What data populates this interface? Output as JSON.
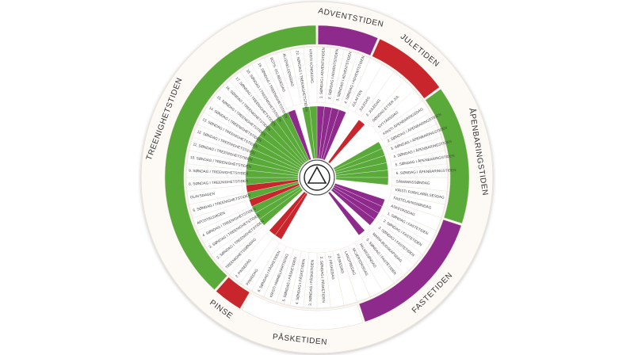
{
  "wheel": {
    "seasons": [
      {
        "name": "ADVENTSTIDEN",
        "color": "#8e2a8c",
        "days": [
          {
            "label": "1. SØNDAG I ADVENTSTIDEN",
            "color": "#8e2a8c"
          },
          {
            "label": "2. SØNDAG I ADVENTSTIDEN",
            "color": "#8e2a8c"
          },
          {
            "label": "3. SØNDAG I ADVENTSTIDEN",
            "color": "#8e2a8c"
          },
          {
            "label": "4. SØNDAG I ADVENTSTIDEN",
            "color": "#8e2a8c"
          }
        ]
      },
      {
        "name": "JULETIDEN",
        "color": "#c8262c",
        "days": [
          {
            "label": "JULAFTEN",
            "color": "#ffffff"
          },
          {
            "label": "JULEDAG",
            "color": "#ffffff"
          },
          {
            "label": "2. JULEDAG",
            "color": "#c8262c"
          },
          {
            "label": "SØNDAG ETTER JUL",
            "color": "#ffffff"
          },
          {
            "label": "NYTTÅRSDAG",
            "color": "#ffffff"
          }
        ]
      },
      {
        "name": "ÅPENBARINGSTIDEN",
        "color": "#5aaa3a",
        "days": [
          {
            "label": "KRISTI ÅPENBARINGSDAG",
            "color": "#ffffff"
          },
          {
            "label": "2. SØNDAG I ÅPENBARINGSTIDEN",
            "color": "#5aaa3a"
          },
          {
            "label": "3. SØNDAG I ÅPENBARINGSTIDEN",
            "color": "#5aaa3a"
          },
          {
            "label": "4. SØNDAG I ÅPENBARINGSTIDEN",
            "color": "#5aaa3a"
          },
          {
            "label": "5. SØNDAG I ÅPENBARINGSTIDEN",
            "color": "#5aaa3a"
          },
          {
            "label": "6. SØNDAG I ÅPENBARINGSTIDEN",
            "color": "#5aaa3a"
          },
          {
            "label": "SÅMANNSSØNDAG",
            "color": "#5aaa3a"
          },
          {
            "label": "KRISTI FORKLARELSESDAG",
            "color": "#ffffff"
          },
          {
            "label": "FASTELAVNSSØNDAG",
            "color": "#ffffff"
          }
        ]
      },
      {
        "name": "FASTETIDEN",
        "color": "#8e2a8c",
        "days": [
          {
            "label": "ASKEONSDAG",
            "color": "#8e2a8c"
          },
          {
            "label": "1. SØNDAG I FASTETIDEN",
            "color": "#8e2a8c"
          },
          {
            "label": "2. SØNDAG I FASTETIDEN",
            "color": "#8e2a8c"
          },
          {
            "label": "3. SØNDAG I FASTETIDEN",
            "color": "#8e2a8c"
          },
          {
            "label": "MARIA BUDSKAPSDAG",
            "color": "#ffffff"
          },
          {
            "label": "5. SØNDAG I FASTETIDEN",
            "color": "#8e2a8c"
          },
          {
            "label": "PALMESØNDAG",
            "color": "#ffffff"
          },
          {
            "label": "SKJÆRTORSDAG",
            "color": "#ffffff"
          },
          {
            "label": "LANGFREDAG",
            "color": "#ffffff"
          }
        ]
      },
      {
        "name": "PÅSKETIDEN",
        "color": "#ffffff",
        "days": [
          {
            "label": "PÅSKEDAG",
            "color": "#ffffff"
          },
          {
            "label": "2. PÅSKEDAG",
            "color": "#ffffff"
          },
          {
            "label": "2. SØNDAG I PÅSKETIDEN",
            "color": "#ffffff"
          },
          {
            "label": "3. SØNDAG I PÅSKETIDEN",
            "color": "#ffffff"
          },
          {
            "label": "4. SØNDAG I PÅSKETIDEN",
            "color": "#ffffff"
          },
          {
            "label": "5. SØNDAG I PÅSKETIDEN",
            "color": "#ffffff"
          },
          {
            "label": "KRISTI HIMMELFARTSDAG",
            "color": "#ffffff"
          },
          {
            "label": "6. SØNDAG I PÅSKETIDEN",
            "color": "#ffffff"
          }
        ]
      },
      {
        "name": "PINSE",
        "color": "#c8262c",
        "days": [
          {
            "label": "PINSEDAG",
            "color": "#c8262c"
          },
          {
            "label": "2. PINSEDAG",
            "color": "#c8262c"
          }
        ]
      },
      {
        "name": "TREENIGHETSTIDEN",
        "color": "#5aaa3a",
        "days": [
          {
            "label": "TREENIGHETSSØNDAG",
            "color": "#ffffff"
          },
          {
            "label": "2. SØNDAG I TREENIGHETSTIDEN",
            "color": "#5aaa3a"
          },
          {
            "label": "3. SØNDAG I TREENIGHETSTIDEN",
            "color": "#5aaa3a"
          },
          {
            "label": "4. SØNDAG I TREENIGHETSTIDEN",
            "color": "#5aaa3a"
          },
          {
            "label": "APOSTELDAGEN",
            "color": "#c8262c"
          },
          {
            "label": "6. SØNDAG I TREENIGHETSTIDEN",
            "color": "#5aaa3a"
          },
          {
            "label": "OLAVSDAGEN",
            "color": "#c8262c"
          },
          {
            "label": "8. SØNDAG I TREENIGHETSTIDEN",
            "color": "#5aaa3a"
          },
          {
            "label": "9. SØNDAG I TREENIGHETSTIDEN",
            "color": "#5aaa3a"
          },
          {
            "label": "10. SØNDAG I TREENIGHETSTIDEN",
            "color": "#5aaa3a"
          },
          {
            "label": "11. SØNDAG I TREENIGHETSTIDEN",
            "color": "#5aaa3a"
          },
          {
            "label": "12. SØNDAG I TREENIGHETSTIDEN",
            "color": "#5aaa3a"
          },
          {
            "label": "13. SØNDAG I TREENIGHETSTIDEN",
            "color": "#5aaa3a"
          },
          {
            "label": "14. SØNDAG I TREENIGHETSTIDEN",
            "color": "#5aaa3a"
          },
          {
            "label": "15. SØNDAG I TREENIGHETSTIDEN",
            "color": "#5aaa3a"
          },
          {
            "label": "16. SØNDAG I TREENIGHETSTIDEN",
            "color": "#5aaa3a"
          },
          {
            "label": "17. SØNDAG I TREENIGHETSTIDEN",
            "color": "#5aaa3a"
          },
          {
            "label": "18. SØNDAG I TREENIGHETSTIDEN",
            "color": "#5aaa3a"
          },
          {
            "label": "19. SØNDAG I TREENIGHETSTIDEN",
            "color": "#5aaa3a"
          },
          {
            "label": "BOTS- OG BEDEDAG",
            "color": "#8e2a8c"
          },
          {
            "label": "ALLEHELGENSDAG",
            "color": "#ffffff"
          },
          {
            "label": "22. SØNDAG I TREENIGHETSTIDEN",
            "color": "#5aaa3a"
          },
          {
            "label": "KRISTI KONGEDAG",
            "color": "#5aaa3a"
          }
        ]
      }
    ]
  }
}
